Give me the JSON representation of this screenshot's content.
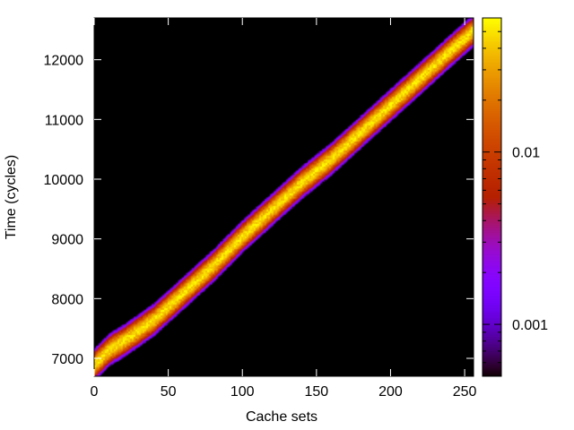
{
  "chart_data": {
    "type": "heatmap",
    "title": "",
    "xlabel": "Cache sets",
    "ylabel": "Time (cycles)",
    "xlim": [
      0,
      256
    ],
    "ylim": [
      6700,
      12700
    ],
    "x_ticks": [
      0,
      50,
      100,
      150,
      200,
      250
    ],
    "y_ticks": [
      7000,
      8000,
      9000,
      10000,
      11000,
      12000
    ],
    "colorbar": {
      "scale": "log",
      "range": [
        0.0005,
        0.06
      ],
      "ticks": [
        0.001,
        0.01
      ],
      "tick_labels": [
        "0.001",
        "0.01"
      ],
      "palette": "black-purple-red-orange-yellow",
      "background_color": "#000000"
    },
    "ridge": {
      "description_points_x": [
        0,
        10,
        20,
        40,
        60,
        80,
        100,
        120,
        140,
        160,
        180,
        200,
        220,
        240,
        256
      ],
      "description_points_y": [
        6900,
        7150,
        7300,
        7650,
        8100,
        8550,
        9050,
        9500,
        9950,
        10350,
        10800,
        11250,
        11700,
        12150,
        12500
      ],
      "peak_value": 0.05
    }
  }
}
